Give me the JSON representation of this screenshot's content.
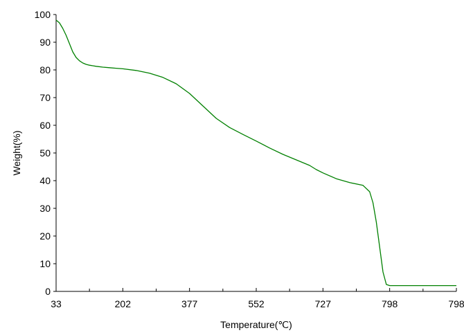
{
  "chart_data": {
    "type": "line",
    "title": "",
    "xlabel": "Temperature(℃)",
    "ylabel": "Weight(%)",
    "ylim": [
      0,
      100
    ],
    "y_ticks": [
      "0",
      "10",
      "20",
      "30",
      "40",
      "50",
      "60",
      "70",
      "80",
      "90",
      "100"
    ],
    "x_ticks": [
      "33",
      "202",
      "377",
      "552",
      "727",
      "798",
      "798"
    ],
    "xlim": [
      0,
      6
    ],
    "grid": false,
    "legend": "none",
    "series": [
      {
        "color": "#008000",
        "x": [
          0,
          0.05,
          0.1,
          0.15,
          0.2,
          0.25,
          0.3,
          0.35,
          0.4,
          0.45,
          0.5,
          0.55,
          0.6,
          0.7,
          0.8,
          0.9,
          1.0,
          1.2,
          1.4,
          1.6,
          1.8,
          2.0,
          2.2,
          2.4,
          2.6,
          2.8,
          3.0,
          3.2,
          3.4,
          3.6,
          3.8,
          3.9,
          4.0,
          4.2,
          4.4,
          4.6,
          4.7,
          4.75,
          4.8,
          4.85,
          4.9,
          4.95,
          5.0,
          5.5,
          6.0
        ],
        "values": [
          98,
          97,
          95,
          92.5,
          89.5,
          86.5,
          84.5,
          83.3,
          82.5,
          82,
          81.7,
          81.5,
          81.3,
          81,
          80.8,
          80.6,
          80.4,
          79.8,
          78.8,
          77.3,
          75,
          71.5,
          67,
          62.5,
          59.2,
          56.7,
          54.3,
          51.8,
          49.5,
          47.5,
          45.5,
          44,
          42.8,
          40.7,
          39.3,
          38.3,
          36,
          32,
          25,
          16,
          7,
          2.5,
          2.1,
          2.1,
          2.1
        ]
      }
    ]
  }
}
